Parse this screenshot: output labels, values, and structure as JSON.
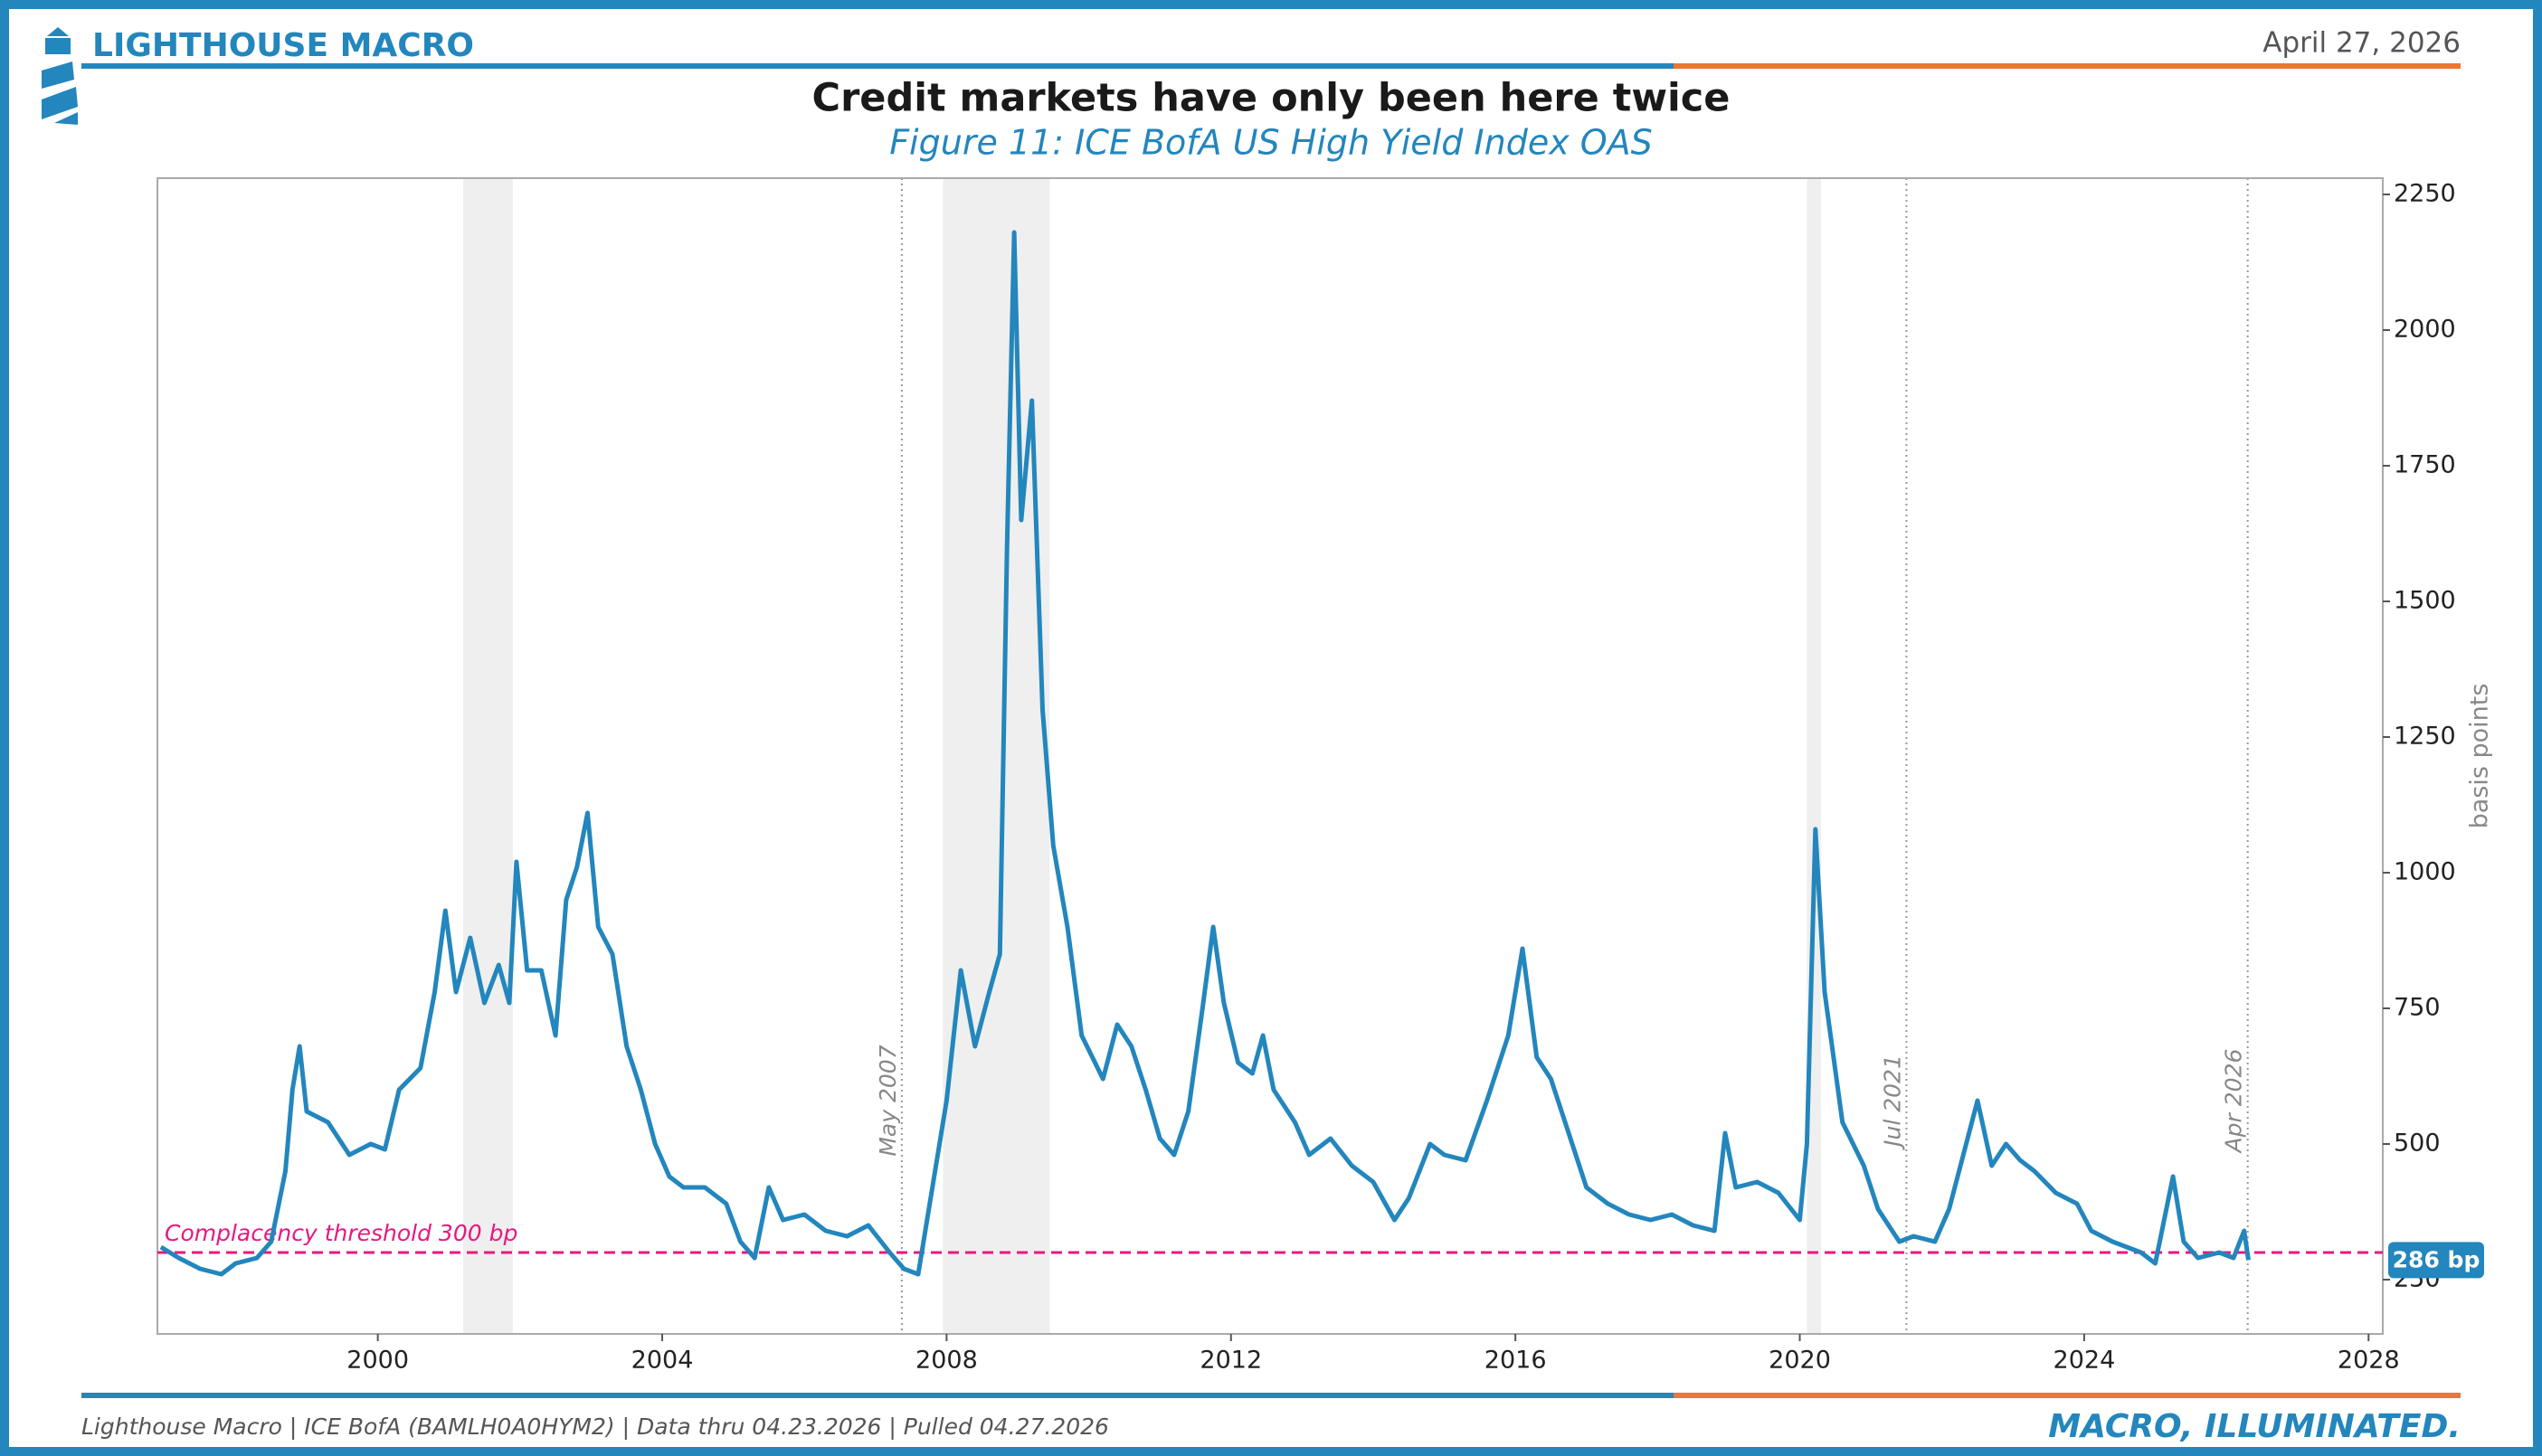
{
  "header": {
    "brand": "LIGHTHOUSE MACRO",
    "date": "April 27, 2026"
  },
  "footer": {
    "source": "Lighthouse Macro | ICE BofA (BAMLH0A0HYM2) | Data thru 04.23.2026 | Pulled 04.27.2026",
    "tagline": "MACRO, ILLUMINATED."
  },
  "chart_data": {
    "type": "line",
    "title": "Credit markets have only been here twice",
    "subtitle": "Figure 11: ICE BofA US High Yield Index OAS",
    "y_label": "basis points",
    "xlim": [
      1996.9,
      2028.2
    ],
    "xticks": [
      2000,
      2004,
      2008,
      2012,
      2016,
      2020,
      2024,
      2028
    ],
    "ylim": [
      150,
      2280
    ],
    "yticks": [
      250,
      500,
      750,
      1000,
      1250,
      1500,
      1750,
      2000,
      2250
    ],
    "x": [
      1996.95,
      1997.2,
      1997.5,
      1997.8,
      1998.0,
      1998.3,
      1998.5,
      1998.7,
      1998.8,
      1998.9,
      1999.0,
      1999.3,
      1999.6,
      1999.9,
      2000.1,
      2000.3,
      2000.6,
      2000.8,
      2000.95,
      2001.1,
      2001.3,
      2001.5,
      2001.7,
      2001.85,
      2001.95,
      2002.1,
      2002.3,
      2002.5,
      2002.65,
      2002.8,
      2002.95,
      2003.1,
      2003.3,
      2003.5,
      2003.7,
      2003.9,
      2004.1,
      2004.3,
      2004.6,
      2004.9,
      2005.1,
      2005.3,
      2005.5,
      2005.7,
      2006.0,
      2006.3,
      2006.6,
      2006.9,
      2007.2,
      2007.4,
      2007.6,
      2007.8,
      2008.0,
      2008.2,
      2008.4,
      2008.6,
      2008.75,
      2008.85,
      2008.95,
      2009.05,
      2009.2,
      2009.35,
      2009.5,
      2009.7,
      2009.9,
      2010.2,
      2010.4,
      2010.6,
      2010.8,
      2011.0,
      2011.2,
      2011.4,
      2011.6,
      2011.75,
      2011.9,
      2012.1,
      2012.3,
      2012.45,
      2012.6,
      2012.9,
      2013.1,
      2013.4,
      2013.7,
      2014.0,
      2014.3,
      2014.5,
      2014.8,
      2015.0,
      2015.3,
      2015.6,
      2015.9,
      2016.1,
      2016.3,
      2016.5,
      2016.8,
      2017.0,
      2017.3,
      2017.6,
      2017.9,
      2018.2,
      2018.5,
      2018.8,
      2018.95,
      2019.1,
      2019.4,
      2019.7,
      2020.0,
      2020.1,
      2020.22,
      2020.35,
      2020.6,
      2020.9,
      2021.1,
      2021.4,
      2021.6,
      2021.9,
      2022.1,
      2022.3,
      2022.5,
      2022.7,
      2022.9,
      2023.1,
      2023.3,
      2023.6,
      2023.9,
      2024.1,
      2024.4,
      2024.6,
      2024.8,
      2025.0,
      2025.25,
      2025.4,
      2025.6,
      2025.9,
      2026.1,
      2026.25,
      2026.31
    ],
    "series": [
      {
        "name": "ICE BofA US High Yield Index OAS",
        "color": "#2386bd",
        "values": [
          310,
          290,
          270,
          260,
          280,
          290,
          320,
          450,
          600,
          680,
          560,
          540,
          480,
          500,
          490,
          600,
          640,
          780,
          930,
          780,
          880,
          760,
          830,
          760,
          1020,
          820,
          820,
          700,
          950,
          1010,
          1110,
          900,
          850,
          680,
          600,
          500,
          440,
          420,
          420,
          390,
          320,
          290,
          420,
          360,
          370,
          340,
          330,
          350,
          300,
          270,
          260,
          420,
          580,
          820,
          680,
          780,
          850,
          1600,
          2180,
          1650,
          1870,
          1300,
          1050,
          900,
          700,
          620,
          720,
          680,
          600,
          510,
          480,
          560,
          750,
          900,
          760,
          650,
          630,
          700,
          600,
          540,
          480,
          510,
          460,
          430,
          360,
          400,
          500,
          480,
          470,
          580,
          700,
          860,
          660,
          620,
          500,
          420,
          390,
          370,
          360,
          370,
          350,
          340,
          520,
          420,
          430,
          410,
          360,
          500,
          1080,
          780,
          540,
          460,
          380,
          320,
          330,
          320,
          380,
          480,
          580,
          460,
          500,
          470,
          450,
          410,
          390,
          340,
          320,
          310,
          300,
          280,
          440,
          320,
          290,
          300,
          290,
          340,
          286
        ]
      }
    ],
    "last_label": "286 bp",
    "threshold": {
      "value": 300,
      "label": "Complacency threshold 300 bp",
      "color": "#e6197f"
    },
    "recessions": [
      [
        2001.2,
        2001.9
      ],
      [
        2007.95,
        2009.45
      ],
      [
        2020.1,
        2020.3
      ]
    ],
    "vlines": [
      {
        "x": 2007.37,
        "label": "May 2007"
      },
      {
        "x": 2021.5,
        "label": "Jul 2021"
      },
      {
        "x": 2026.3,
        "label": "Apr 2026"
      }
    ]
  }
}
